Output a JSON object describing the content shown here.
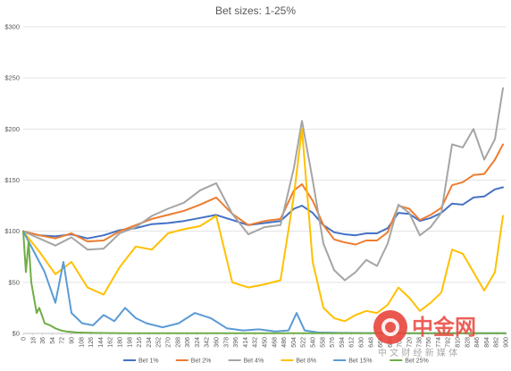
{
  "chart_data": {
    "type": "line",
    "title": "Bet sizes: 1-25%",
    "xlabel": "",
    "ylabel": "",
    "ylim": [
      0,
      300
    ],
    "xlim": [
      0,
      900
    ],
    "y_ticks": [
      "$0",
      "$50",
      "$100",
      "$150",
      "$200",
      "$250",
      "$300"
    ],
    "y_tick_values": [
      0,
      50,
      100,
      150,
      200,
      250,
      300
    ],
    "x_ticks": [
      0,
      18,
      36,
      54,
      72,
      90,
      108,
      126,
      144,
      162,
      180,
      198,
      216,
      234,
      252,
      270,
      288,
      306,
      324,
      342,
      360,
      378,
      396,
      414,
      432,
      450,
      468,
      486,
      504,
      522,
      540,
      558,
      576,
      594,
      612,
      630,
      648,
      666,
      684,
      702,
      720,
      738,
      756,
      774,
      792,
      810,
      828,
      846,
      864,
      882,
      900
    ],
    "grid": "horizontal",
    "legend": "bottom",
    "series": [
      {
        "name": "Bet 1%",
        "color": "#4472C4",
        "x": [
          0,
          30,
          60,
          90,
          120,
          150,
          180,
          210,
          240,
          270,
          300,
          330,
          360,
          390,
          420,
          450,
          480,
          505,
          520,
          540,
          560,
          580,
          600,
          620,
          640,
          660,
          680,
          700,
          720,
          740,
          760,
          780,
          800,
          820,
          840,
          860,
          880,
          895
        ],
        "y": [
          100,
          96,
          95,
          97,
          93,
          96,
          101,
          103,
          107,
          108,
          110,
          113,
          116,
          111,
          106,
          108,
          110,
          122,
          125,
          118,
          106,
          99,
          97,
          96,
          98,
          98,
          103,
          118,
          117,
          110,
          113,
          118,
          127,
          126,
          133,
          134,
          141,
          143
        ]
      },
      {
        "name": "Bet 2%",
        "color": "#ED7D31",
        "x": [
          0,
          30,
          60,
          90,
          120,
          150,
          180,
          210,
          240,
          270,
          300,
          330,
          360,
          390,
          420,
          450,
          480,
          505,
          520,
          540,
          560,
          580,
          600,
          620,
          640,
          660,
          680,
          700,
          720,
          740,
          760,
          780,
          800,
          820,
          840,
          860,
          880,
          895
        ],
        "y": [
          100,
          96,
          93,
          98,
          90,
          91,
          100,
          106,
          112,
          116,
          120,
          126,
          133,
          117,
          106,
          110,
          112,
          140,
          146,
          130,
          106,
          92,
          89,
          87,
          91,
          91,
          99,
          125,
          122,
          111,
          116,
          123,
          145,
          148,
          155,
          156,
          170,
          185
        ]
      },
      {
        "name": "Bet 4%",
        "color": "#A5A5A5",
        "x": [
          0,
          30,
          60,
          90,
          120,
          150,
          180,
          210,
          240,
          270,
          300,
          330,
          360,
          390,
          420,
          450,
          480,
          505,
          520,
          540,
          560,
          580,
          600,
          620,
          640,
          660,
          680,
          700,
          720,
          740,
          760,
          780,
          800,
          820,
          840,
          860,
          880,
          895
        ],
        "y": [
          100,
          93,
          86,
          94,
          82,
          83,
          98,
          104,
          115,
          122,
          128,
          140,
          147,
          117,
          97,
          104,
          106,
          162,
          208,
          150,
          88,
          62,
          52,
          60,
          72,
          66,
          88,
          126,
          118,
          96,
          104,
          118,
          185,
          182,
          200,
          170,
          190,
          240
        ]
      },
      {
        "name": "Bet 8%",
        "color": "#FFC000",
        "x": [
          0,
          30,
          60,
          90,
          120,
          150,
          180,
          210,
          240,
          270,
          300,
          330,
          360,
          390,
          420,
          450,
          480,
          505,
          520,
          540,
          560,
          580,
          600,
          620,
          640,
          660,
          680,
          700,
          720,
          740,
          760,
          780,
          800,
          820,
          840,
          860,
          880,
          895
        ],
        "y": [
          100,
          80,
          58,
          70,
          45,
          38,
          65,
          85,
          82,
          98,
          102,
          105,
          115,
          50,
          45,
          48,
          52,
          135,
          200,
          70,
          25,
          15,
          12,
          18,
          22,
          20,
          28,
          45,
          35,
          22,
          30,
          40,
          82,
          78,
          60,
          42,
          60,
          115
        ]
      },
      {
        "name": "Bet 15%",
        "color": "#5B9BD5",
        "x": [
          0,
          20,
          40,
          60,
          75,
          90,
          110,
          130,
          150,
          170,
          190,
          210,
          230,
          260,
          290,
          320,
          350,
          380,
          410,
          440,
          470,
          495,
          510,
          525,
          550,
          600,
          700,
          800,
          900
        ],
        "y": [
          100,
          80,
          60,
          30,
          70,
          20,
          10,
          8,
          18,
          12,
          25,
          15,
          10,
          6,
          10,
          20,
          15,
          5,
          3,
          4,
          2,
          3,
          20,
          3,
          1,
          0.5,
          0.3,
          0.2,
          0.2
        ]
      },
      {
        "name": "Bet 25%",
        "color": "#70AD47",
        "x": [
          0,
          5,
          10,
          15,
          20,
          25,
          30,
          40,
          50,
          60,
          70,
          80,
          100,
          130,
          200,
          300,
          500,
          700,
          900
        ],
        "y": [
          100,
          60,
          90,
          50,
          35,
          20,
          25,
          10,
          8,
          5,
          3,
          2,
          1,
          0.5,
          0.3,
          0.2,
          0.2,
          0.3,
          0.3
        ]
      }
    ]
  },
  "watermark": {
    "main": "中金网",
    "sub": "中 文 财 经 新 媒 体"
  }
}
